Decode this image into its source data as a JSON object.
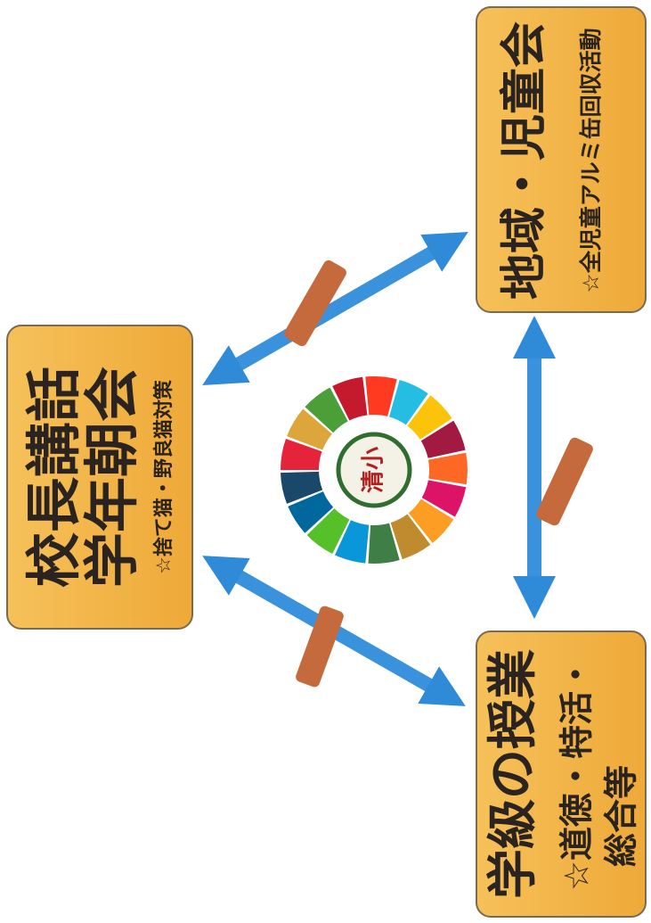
{
  "boxes": [
    {
      "lines": [
        "校長講話",
        "学年朝会",
        "☆捨て猫・野良猫対策"
      ]
    },
    {
      "lines": [
        "地域・児童会",
        "☆全児童アルミ缶回収活動"
      ]
    },
    {
      "lines": [
        "学級の授業",
        "☆道徳・特活・",
        "総合等"
      ]
    }
  ],
  "emblem": "清小"
}
